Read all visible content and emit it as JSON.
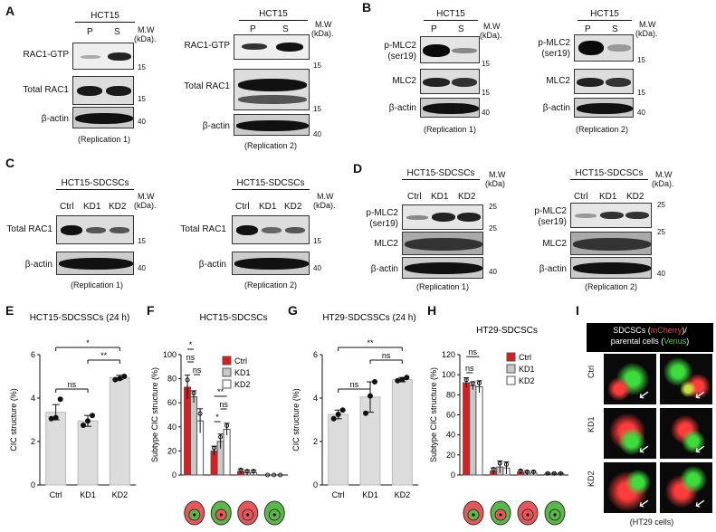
{
  "panels": {
    "A": "A",
    "B": "B",
    "C": "C",
    "D": "D",
    "E": "E",
    "F": "F",
    "G": "G",
    "H": "H",
    "I": "I"
  },
  "common": {
    "mw": "M.W",
    "kda": "(kDa).",
    "kda_nodot": "(kDa)",
    "beta_actin": "β-actin",
    "total_rac1": "Total RAC1",
    "rac1_gtp": "RAC1-GTP",
    "pmlc2_l1": "p-MLC2",
    "pmlc2_l2": "(ser19)",
    "mlc2": "MLC2",
    "rep1": "(Replication 1)",
    "rep2": "(Replication 2)",
    "lane_p": "P",
    "lane_s": "S",
    "ctrl": "Ctrl",
    "kd1": "KD1",
    "kd2": "KD2",
    "mw15": "15",
    "mw25": "25",
    "mw40": "40",
    "ns": "ns",
    "star": "*",
    "dstar": "**"
  },
  "titles": {
    "hct15": "HCT15",
    "hct15_sdcscs": "HCT15-SDCSCs",
    "E": "HCT15-SDCSSCs (24 h)",
    "F": "HCT15-SDCSCs",
    "G": "HT29-SDCSSCs (24 h)",
    "H": "HT29-SDCSCs"
  },
  "axes": {
    "cic_structure": "CIC structure (%)",
    "subtype_cic": "Subtype CIC structure (%)"
  },
  "panel_I": {
    "title_a": "SDCSCs (",
    "title_m": "mCherry",
    "title_b": ")/",
    "title_c": "parental cells (",
    "title_v": "Venus",
    "title_d": ")",
    "rows": [
      "Ctrl",
      "KD1",
      "KD2"
    ],
    "caption": "(HT29 cells)"
  },
  "colors": {
    "ctrl": "#e31a1c",
    "kd1": "#c8c8c8",
    "kd2": "#ffffff",
    "mcherry": "#ff3b3b",
    "venus": "#3ddc3d",
    "cell_red": "#e8565a",
    "cell_green": "#59b847"
  },
  "chart_data": [
    {
      "id": "E",
      "type": "bar",
      "title": "HCT15-SDCSSCs (24 h)",
      "ylabel": "CIC structure (%)",
      "categories": [
        "Ctrl",
        "KD1",
        "KD2"
      ],
      "values": [
        3.35,
        2.95,
        4.95
      ],
      "errors": [
        0.35,
        0.25,
        0.1
      ],
      "points": [
        [
          3.05,
          3.1,
          3.95
        ],
        [
          2.75,
          2.95,
          3.2
        ],
        [
          4.85,
          4.9,
          5.0
        ]
      ],
      "ylim": [
        0,
        6
      ],
      "yticks": [
        0,
        2,
        4,
        6
      ],
      "significance": [
        [
          "Ctrl",
          "KD2",
          "*"
        ],
        [
          "KD1",
          "KD2",
          "**"
        ],
        [
          "Ctrl",
          "KD1",
          "ns"
        ]
      ]
    },
    {
      "id": "F",
      "type": "bar",
      "title": "HCT15-SDCSCs",
      "ylabel": "Subtype CIC structure (%)",
      "series": [
        {
          "name": "Ctrl",
          "values": [
            73,
            20,
            3,
            0
          ]
        },
        {
          "name": "KD1",
          "values": [
            65,
            28,
            2,
            0
          ]
        },
        {
          "name": "KD2",
          "values": [
            45,
            38,
            2,
            0
          ]
        }
      ],
      "errors": [
        [
          10,
          4,
          2,
          0
        ],
        [
          5,
          6,
          2,
          0
        ],
        [
          10,
          5,
          2,
          0
        ]
      ],
      "ylim": [
        0,
        100
      ],
      "yticks": [
        0,
        20,
        40,
        60,
        80,
        100
      ],
      "significance": [
        [
          "Ctrl-KD1",
          "*"
        ],
        [
          "Ctrl-KD1",
          "ns"
        ],
        [
          "KD1-KD2",
          "ns"
        ],
        [
          "Ctrl-KD2",
          "**"
        ],
        [
          "KD1-KD2",
          "ns"
        ],
        [
          "Ctrl-KD1",
          "*"
        ]
      ]
    },
    {
      "id": "G",
      "type": "bar",
      "title": "HT29-SDCSSCs (24 h)",
      "ylabel": "CIC structure (%)",
      "categories": [
        "Ctrl",
        "KD1",
        "KD2"
      ],
      "values": [
        3.25,
        4.05,
        4.85
      ],
      "errors": [
        0.2,
        0.7,
        0.1
      ],
      "points": [
        [
          3.05,
          3.25,
          3.45
        ],
        [
          3.3,
          4.1,
          4.75
        ],
        [
          4.8,
          4.85,
          4.95
        ]
      ],
      "ylim": [
        0,
        6
      ],
      "yticks": [
        0,
        2,
        4,
        6
      ],
      "significance": [
        [
          "Ctrl",
          "KD2",
          "**"
        ],
        [
          "KD1",
          "KD2",
          "ns"
        ],
        [
          "Ctrl",
          "KD1",
          "ns"
        ]
      ]
    },
    {
      "id": "H",
      "type": "bar",
      "title": "HT29-SDCSCs",
      "ylabel": "Subtype CIC structure (%)",
      "series": [
        {
          "name": "Ctrl",
          "values": [
            92,
            4,
            3,
            1
          ]
        },
        {
          "name": "KD1",
          "values": [
            89,
            8,
            2,
            1
          ]
        },
        {
          "name": "KD2",
          "values": [
            88,
            7,
            2,
            1
          ]
        }
      ],
      "errors": [
        [
          5,
          3,
          2,
          1
        ],
        [
          4,
          6,
          2,
          1
        ],
        [
          6,
          6,
          2,
          1
        ]
      ],
      "ylim": [
        0,
        120
      ],
      "yticks": [
        0,
        20,
        40,
        60,
        80,
        100,
        120
      ],
      "significance": [
        [
          "Ctrl-KD1",
          "ns"
        ],
        [
          "Ctrl-KD2",
          "ns"
        ]
      ]
    }
  ]
}
